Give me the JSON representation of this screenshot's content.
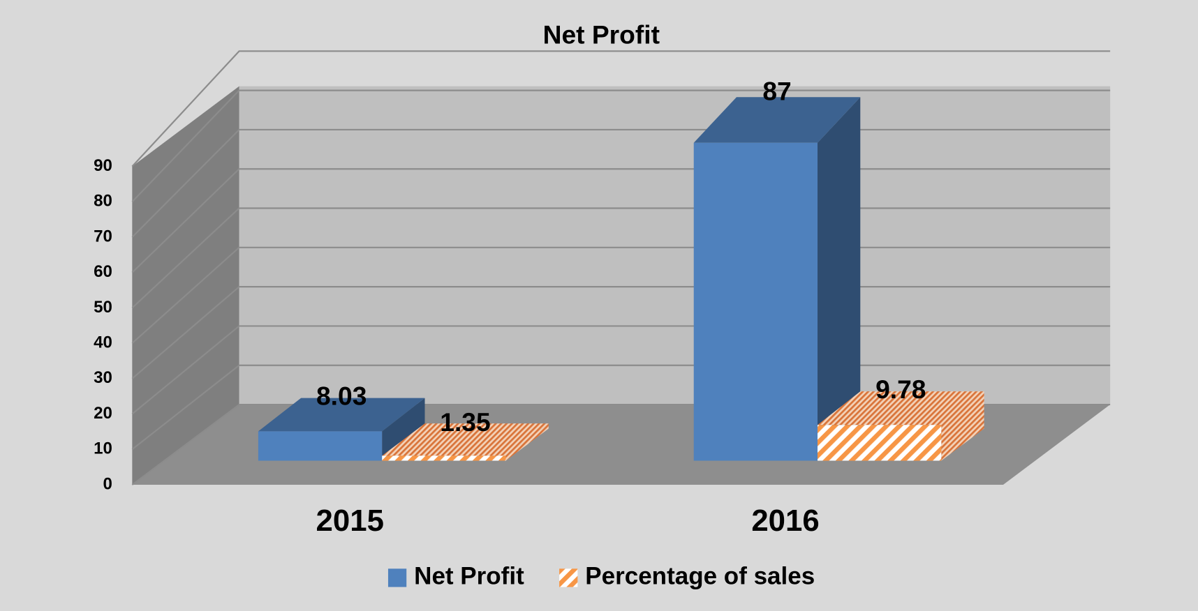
{
  "chart_data": {
    "type": "bar3d",
    "title": "Net Profit",
    "categories": [
      "2015",
      "2016"
    ],
    "series": [
      {
        "name": "Net Profit",
        "color": "#4f81bd",
        "values": [
          8.03,
          87
        ]
      },
      {
        "name": "Percentage of sales",
        "color": "#f79646",
        "values": [
          1.35,
          9.78
        ]
      }
    ],
    "ylim": [
      0,
      90
    ],
    "yticks": [
      0,
      10,
      20,
      30,
      40,
      50,
      60,
      70,
      80,
      90
    ],
    "grid": true,
    "legend": "bottom"
  }
}
